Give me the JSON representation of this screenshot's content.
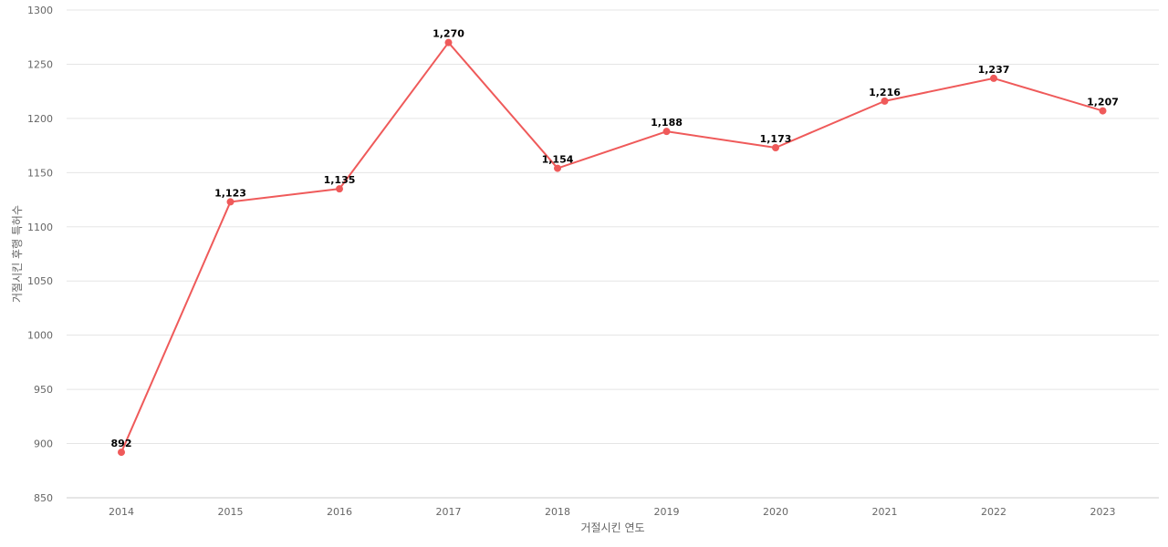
{
  "chart_data": {
    "type": "line",
    "title": "",
    "xlabel": "거절시킨 연도",
    "ylabel": "거절시킨 후행 특허수",
    "categories": [
      "2014",
      "2015",
      "2016",
      "2017",
      "2018",
      "2019",
      "2020",
      "2021",
      "2022",
      "2023"
    ],
    "series": [
      {
        "values": [
          892,
          1123,
          1135,
          1270,
          1154,
          1188,
          1173,
          1216,
          1237,
          1207
        ],
        "data_labels": [
          "892",
          "1,123",
          "1,135",
          "1,270",
          "1,154",
          "1,188",
          "1,173",
          "1,216",
          "1,237",
          "1,207"
        ],
        "color": "#ef5a5a"
      }
    ],
    "ylim": [
      850,
      1300
    ],
    "yticks": [
      "850",
      "900",
      "950",
      "1000",
      "1050",
      "1100",
      "1150",
      "1200",
      "1250",
      "1300"
    ],
    "grid": true,
    "gridline_color": "#e5e5e5",
    "legend": "none"
  }
}
